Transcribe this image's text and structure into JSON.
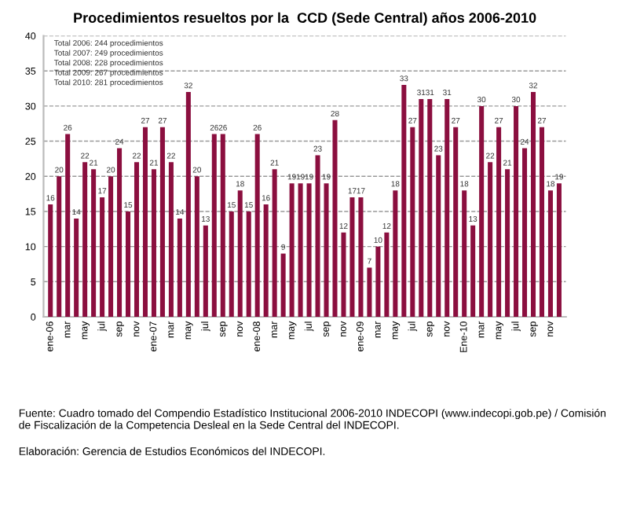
{
  "chart_data": {
    "type": "bar",
    "title": "Procedimientos resueltos por la  CCD (Sede Central) años 2006-2010",
    "categories": [
      "ene-06",
      null,
      "mar",
      null,
      "may",
      null,
      "jul",
      null,
      "sep",
      null,
      "nov",
      null,
      "ene-07",
      null,
      "mar",
      null,
      "may",
      null,
      "jul",
      null,
      "sep",
      null,
      "nov",
      null,
      "ene-08",
      null,
      "mar",
      null,
      "may",
      null,
      "jul",
      null,
      "sep",
      null,
      "nov",
      null,
      "ene-09",
      null,
      "mar",
      null,
      "may",
      null,
      "jul",
      null,
      "sep",
      null,
      "nov",
      null,
      "Ene-10",
      null,
      "mar",
      null,
      "may",
      null,
      "jul",
      null,
      "sep",
      null,
      "nov",
      null
    ],
    "values": [
      16,
      20,
      26,
      14,
      22,
      21,
      17,
      20,
      24,
      15,
      22,
      27,
      21,
      27,
      22,
      14,
      32,
      20,
      13,
      26,
      26,
      15,
      18,
      15,
      26,
      16,
      21,
      9,
      19,
      19,
      19,
      23,
      19,
      28,
      12,
      17,
      17,
      7,
      10,
      12,
      18,
      33,
      27,
      31,
      31,
      23,
      31,
      27,
      18,
      13,
      30,
      22,
      27,
      21,
      30,
      24,
      32,
      27,
      18,
      19
    ],
    "color": "#8b0f3f",
    "ylim": [
      0,
      40
    ],
    "yticks": [
      0,
      5,
      10,
      15,
      20,
      25,
      30,
      35,
      40
    ],
    "grid": "y",
    "data_labels": true,
    "annotations": [
      "Total 2006: 244 procedimientos",
      "Total 2007: 249 procedimientos",
      "Total 2008: 228 procedimientos",
      "Total 2009: 267 procedimientos",
      "Total 2010: 281 procedimientos",
      "Fuente: Cuadro tomado del Compendio Estadístico Institucional 2006-2010 INDECOPI (www.indecopi.gob.pe) / Comisión de Fiscalización de la Competencia Desleal en la Sede Central del INDECOPI.",
      "Elaboración: Gerencia de Estudios Económicos del INDECOPI."
    ]
  }
}
